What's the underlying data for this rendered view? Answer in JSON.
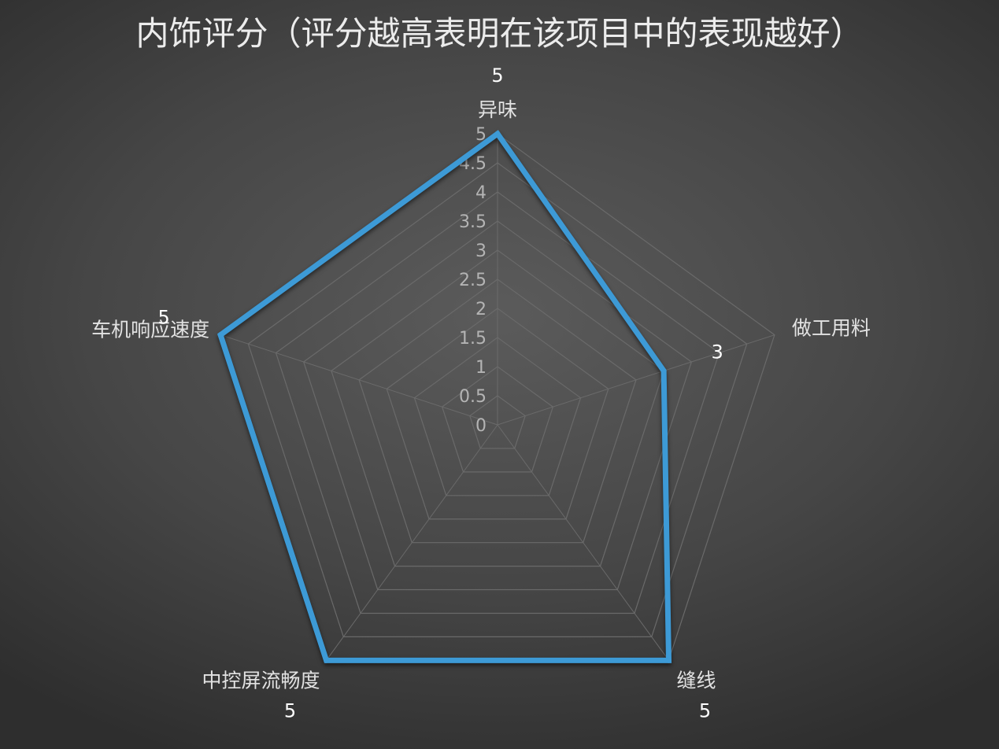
{
  "chart_data": {
    "type": "radar",
    "title": "内饰评分（评分越高表明在该项目中的表现越好）",
    "categories": [
      "异味",
      "做工用料",
      "缝线",
      "中控屏流畅度",
      "车机响应速度"
    ],
    "series": [
      {
        "values": [
          5,
          3,
          5,
          5,
          5
        ]
      }
    ],
    "rmin": 0,
    "rmax": 5,
    "ticks": [
      "0",
      "0.5",
      "1",
      "1.5",
      "2",
      "2.5",
      "3",
      "3.5",
      "4",
      "4.5",
      "5"
    ],
    "tick_values": [
      0,
      0.5,
      1,
      1.5,
      2,
      2.5,
      3,
      3.5,
      4,
      4.5,
      5
    ],
    "grid": true,
    "legend": "none",
    "colors": {
      "series": "#3d9ad6",
      "grid": "#6a6a6a"
    }
  }
}
